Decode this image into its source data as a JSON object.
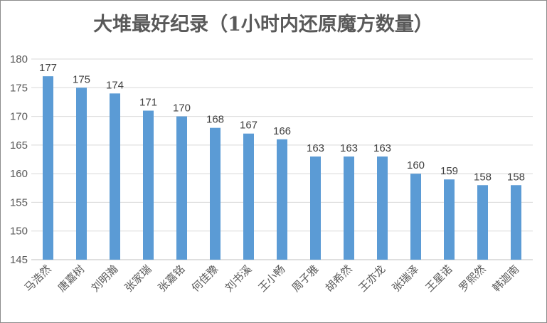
{
  "chart_data": {
    "type": "bar",
    "title": "大堆最好纪录（1小时内还原魔方数量）",
    "categories": [
      "马浩然",
      "唐嘉树",
      "刘明瀚",
      "张家瑞",
      "张嘉铭",
      "何佳豫",
      "刘书溪",
      "王小畅",
      "周子雅",
      "胡希然",
      "王亦龙",
      "张瑞泽",
      "王星诺",
      "罗熙然",
      "韩迦南"
    ],
    "values": [
      177,
      175,
      174,
      171,
      170,
      168,
      167,
      166,
      163,
      163,
      163,
      160,
      159,
      158,
      158
    ],
    "ylim": [
      145,
      180
    ],
    "yticks": [
      145,
      150,
      155,
      160,
      165,
      170,
      175,
      180
    ],
    "grid": true,
    "legend": "none",
    "bar_color": "#5b9bd5",
    "data_labels": true
  }
}
